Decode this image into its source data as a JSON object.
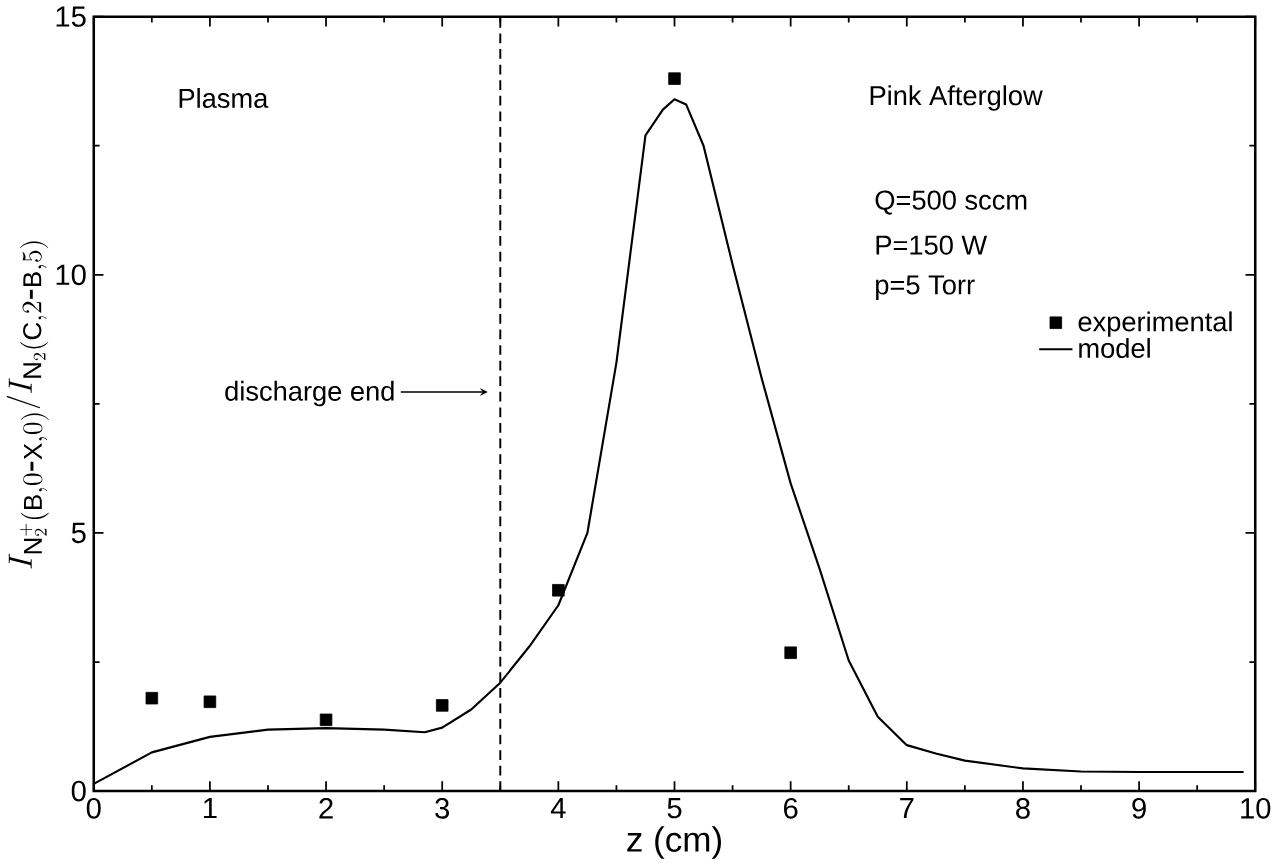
{
  "chart_data": {
    "type": "line",
    "xlabel": "z (cm)",
    "ylabel": "I_{\\mathrm{N}_2^+(\\mathrm{B},0\\mbox{-}\\mathrm{X},0)}/I_{\\mathrm{N}_2(\\mathrm{C},2\\mbox{-}\\mathrm{B},5)}",
    "xlim": [
      0,
      10
    ],
    "ylim": [
      0,
      15
    ],
    "xticks": [
      0,
      1,
      2,
      3,
      4,
      5,
      6,
      7,
      8,
      9,
      10
    ],
    "yticks": [
      0,
      5,
      10,
      15
    ],
    "grid": false,
    "legend": "right",
    "series": [
      {
        "name": "experimental",
        "type": "scatter",
        "marker": "square",
        "color": "#000000",
        "x": [
          0.5,
          1,
          2,
          3,
          4,
          5,
          6
        ],
        "values": [
          1.8,
          1.73,
          1.38,
          1.66,
          3.89,
          13.8,
          2.68
        ]
      },
      {
        "name": "model",
        "marker": "none",
        "line_style": "solid",
        "color": "#000000",
        "x": [
          0,
          0.5,
          1,
          1.5,
          2,
          2.5,
          2.85,
          3,
          3.25,
          3.5,
          3.75,
          4,
          4.25,
          4.5,
          4.75,
          4.9,
          5,
          5.1,
          5.25,
          5.5,
          5.75,
          6,
          6.25,
          6.5,
          6.75,
          7,
          7.25,
          7.5,
          8,
          8.5,
          9,
          9.9
        ],
        "values": [
          0.14,
          0.75,
          1.05,
          1.19,
          1.22,
          1.19,
          1.14,
          1.23,
          1.58,
          2.1,
          2.8,
          3.6,
          5.0,
          8.3,
          12.7,
          13.2,
          13.4,
          13.3,
          12.5,
          10.2,
          8.0,
          5.96,
          4.3,
          2.53,
          1.44,
          0.89,
          0.73,
          0.59,
          0.44,
          0.38,
          0.37,
          0.37
        ]
      }
    ],
    "ref_lines": [
      {
        "axis": "x",
        "value": 3.5,
        "line_style": "dashed",
        "color": "#000000"
      }
    ],
    "annotations": [
      "Plasma",
      "Pink Afterglow",
      "Q=500 sccm",
      "P=150 W",
      "p=5 Torr",
      "discharge end"
    ]
  }
}
